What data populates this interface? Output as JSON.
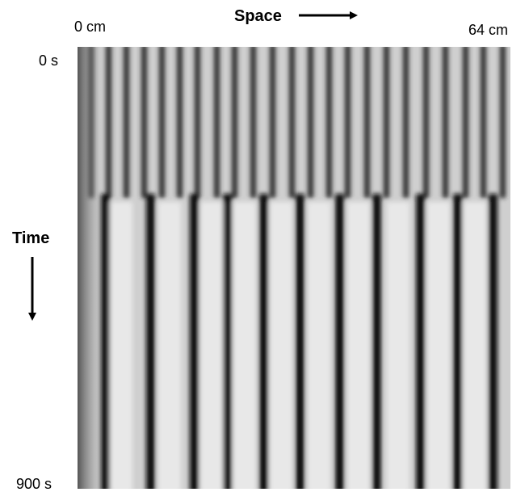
{
  "labels": {
    "space_title": "Space",
    "space_start": "0 cm",
    "space_end": "64 cm",
    "time_title": "Time",
    "time_start": "0 s",
    "time_end": "900 s"
  }
}
